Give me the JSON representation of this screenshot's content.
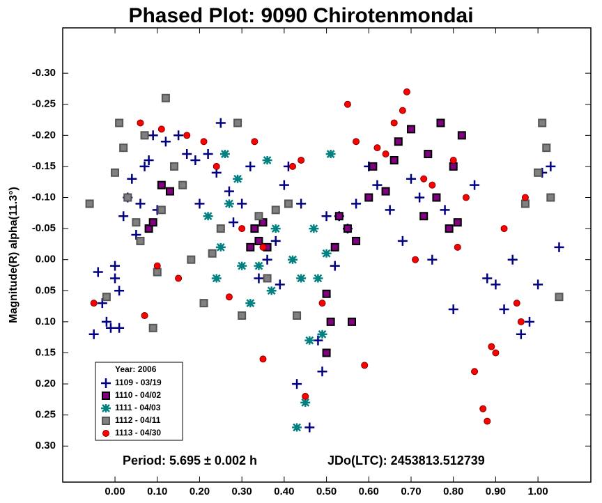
{
  "chart_data": {
    "type": "scatter",
    "title": "Phased Plot: 9090 Chirotenmondai",
    "y_label": "Magnitude(R) alpha(11.3°)",
    "annotations": [
      "Period: 5.695 ± 0.002 h",
      "JDo(LTC): 2453813.512739"
    ],
    "legend_title": "Year: 2006",
    "xlim": [
      -0.1236,
      1.125
    ],
    "ylim": [
      0.358,
      -0.373
    ],
    "xticks": [
      {
        "value": 0,
        "label": "0.00"
      },
      {
        "value": 0.1,
        "label": "0.10"
      },
      {
        "value": 0.2,
        "label": "0.20"
      },
      {
        "value": 0.3,
        "label": "0.30"
      },
      {
        "value": 0.4,
        "label": "0.40"
      },
      {
        "value": 0.5,
        "label": "0.50"
      },
      {
        "value": 0.6,
        "label": "0.60"
      },
      {
        "value": 0.7,
        "label": "0.70"
      },
      {
        "value": 0.8,
        "label": "0.80"
      },
      {
        "value": 0.9,
        "label": "0.90"
      },
      {
        "value": 1,
        "label": "1.00"
      }
    ],
    "yticks": [
      {
        "value": -0.3,
        "label": "-0.30"
      },
      {
        "value": -0.25,
        "label": "-0.25"
      },
      {
        "value": -0.2,
        "label": "-0.20"
      },
      {
        "value": -0.15,
        "label": "-0.15"
      },
      {
        "value": -0.1,
        "label": "-0.10"
      },
      {
        "value": -0.05,
        "label": "-0.05"
      },
      {
        "value": 0,
        "label": "0.00"
      },
      {
        "value": 0.05,
        "label": "0.05"
      },
      {
        "value": 0.1,
        "label": "0.10"
      },
      {
        "value": 0.15,
        "label": "0.15"
      },
      {
        "value": 0.2,
        "label": "0.20"
      },
      {
        "value": 0.25,
        "label": "0.25"
      },
      {
        "value": 0.3,
        "label": "0.30"
      }
    ],
    "series": [
      {
        "name": "1109 - 03/19",
        "marker": "plus",
        "color": "#000080",
        "x": [
          -0.05,
          -0.04,
          -0.03,
          -0.02,
          -0.01,
          0.0,
          0.0,
          0.01,
          0.01,
          0.02,
          0.03,
          0.04,
          0.05,
          0.06,
          0.07,
          0.08,
          0.09,
          0.1,
          0.12,
          0.15,
          0.17,
          0.19,
          0.2,
          0.22,
          0.24,
          0.25,
          0.27,
          0.28,
          0.3,
          0.32,
          0.34,
          0.36,
          0.38,
          0.39,
          0.4,
          0.41,
          0.43,
          0.44,
          0.46,
          0.48,
          0.49,
          0.5,
          0.52,
          0.53,
          0.55,
          0.57,
          0.6,
          0.62,
          0.65,
          0.68,
          0.7,
          0.72,
          0.75,
          0.78,
          0.8,
          0.85,
          0.88,
          0.9,
          0.92,
          0.94,
          0.96,
          0.98,
          1.0,
          1.01,
          1.03,
          1.05
        ],
        "values": [
          0.12,
          0.02,
          0.07,
          0.1,
          0.11,
          0.01,
          0.03,
          0.05,
          0.11,
          -0.07,
          -0.1,
          -0.13,
          -0.04,
          -0.09,
          -0.15,
          -0.16,
          -0.2,
          -0.08,
          -0.19,
          -0.2,
          -0.17,
          -0.16,
          -0.09,
          -0.17,
          -0.14,
          -0.22,
          -0.11,
          -0.06,
          -0.09,
          -0.15,
          0.03,
          0.0,
          -0.03,
          0.04,
          -0.12,
          -0.15,
          0.2,
          -0.09,
          0.27,
          0.13,
          0.18,
          -0.07,
          0.01,
          -0.07,
          -0.05,
          -0.09,
          -0.15,
          -0.12,
          -0.08,
          -0.03,
          -0.13,
          -0.1,
          0.0,
          -0.08,
          0.08,
          -0.12,
          0.03,
          0.04,
          0.08,
          0.0,
          0.12,
          0.1,
          0.04,
          -0.14,
          -0.15,
          -0.02
        ]
      },
      {
        "name": "1110 - 04/02",
        "marker": "square",
        "color": "#800080",
        "x": [
          0.08,
          0.09,
          0.11,
          0.13,
          0.32,
          0.33,
          0.34,
          0.35,
          0.36,
          0.5,
          0.5,
          0.51,
          0.52,
          0.53,
          0.55,
          0.56,
          0.57,
          0.6,
          0.61,
          0.64,
          0.66,
          0.67,
          0.7,
          0.73,
          0.74,
          0.76,
          0.77,
          0.79,
          0.8,
          0.81,
          0.82
        ],
        "values": [
          -0.05,
          -0.06,
          -0.12,
          -0.11,
          -0.02,
          -0.05,
          -0.03,
          -0.06,
          -0.02,
          0.055,
          0.15,
          0.1,
          -0.02,
          -0.07,
          -0.05,
          0.1,
          -0.03,
          -0.1,
          -0.15,
          -0.11,
          -0.16,
          -0.19,
          -0.21,
          -0.07,
          -0.17,
          -0.1,
          -0.22,
          -0.05,
          -0.15,
          -0.06,
          -0.2
        ]
      },
      {
        "name": "1111 - 04/03",
        "marker": "asterisk",
        "color": "#008080",
        "x": [
          0.22,
          0.24,
          0.25,
          0.26,
          0.27,
          0.29,
          0.3,
          0.32,
          0.34,
          0.36,
          0.37,
          0.38,
          0.42,
          0.44,
          0.45,
          0.46,
          0.47,
          0.48,
          0.49,
          0.5,
          0.51,
          0.43
        ],
        "values": [
          -0.07,
          0.03,
          -0.02,
          -0.17,
          -0.09,
          -0.13,
          0.01,
          0.07,
          0.01,
          -0.16,
          0.05,
          -0.05,
          0.0,
          0.03,
          0.23,
          0.13,
          -0.05,
          0.03,
          0.12,
          -0.01,
          -0.17,
          0.27
        ]
      },
      {
        "name": "1112 - 04/11",
        "marker": "square",
        "color": "#808080",
        "x": [
          -0.06,
          0.0,
          0.01,
          0.02,
          0.03,
          0.05,
          0.06,
          0.07,
          0.09,
          0.1,
          0.11,
          0.12,
          0.14,
          0.16,
          0.18,
          0.21,
          0.23,
          0.25,
          0.29,
          0.3,
          0.34,
          0.36,
          0.38,
          0.41,
          0.43,
          0.97,
          1.0,
          1.01,
          1.02,
          1.03,
          1.05,
          -0.02
        ],
        "values": [
          -0.09,
          -0.14,
          -0.22,
          -0.18,
          -0.1,
          -0.06,
          -0.03,
          -0.2,
          0.11,
          0.02,
          -0.08,
          -0.26,
          -0.15,
          -0.12,
          0.0,
          0.07,
          -0.01,
          -0.05,
          -0.22,
          0.09,
          -0.07,
          0.03,
          -0.08,
          -0.09,
          0.09,
          -0.09,
          -0.14,
          -0.22,
          -0.18,
          -0.1,
          0.06,
          0.06
        ]
      },
      {
        "name": "1113 - 04/30",
        "marker": "circle",
        "color": "#ff0000",
        "x": [
          -0.05,
          0.06,
          0.07,
          0.1,
          0.11,
          0.15,
          0.17,
          0.21,
          0.24,
          0.27,
          0.3,
          0.33,
          0.35,
          0.35,
          0.42,
          0.44,
          0.45,
          0.49,
          0.55,
          0.57,
          0.59,
          0.62,
          0.66,
          0.68,
          0.69,
          0.71,
          0.75,
          0.8,
          0.81,
          0.83,
          0.85,
          0.87,
          0.88,
          0.89,
          0.9,
          0.92,
          0.95,
          0.96,
          0.97,
          0.64,
          0.73
        ],
        "values": [
          0.07,
          -0.22,
          0.09,
          0.01,
          -0.21,
          0.03,
          -0.2,
          -0.19,
          -0.15,
          0.06,
          -0.05,
          -0.19,
          -0.02,
          0.16,
          -0.15,
          -0.16,
          0.22,
          0.07,
          -0.25,
          -0.19,
          0.17,
          -0.18,
          -0.22,
          -0.24,
          -0.27,
          0.0,
          -0.12,
          -0.16,
          -0.02,
          -0.1,
          0.18,
          0.24,
          0.26,
          0.14,
          0.15,
          -0.05,
          0.07,
          0.1,
          -0.1,
          -0.17,
          -0.13
        ]
      }
    ]
  }
}
